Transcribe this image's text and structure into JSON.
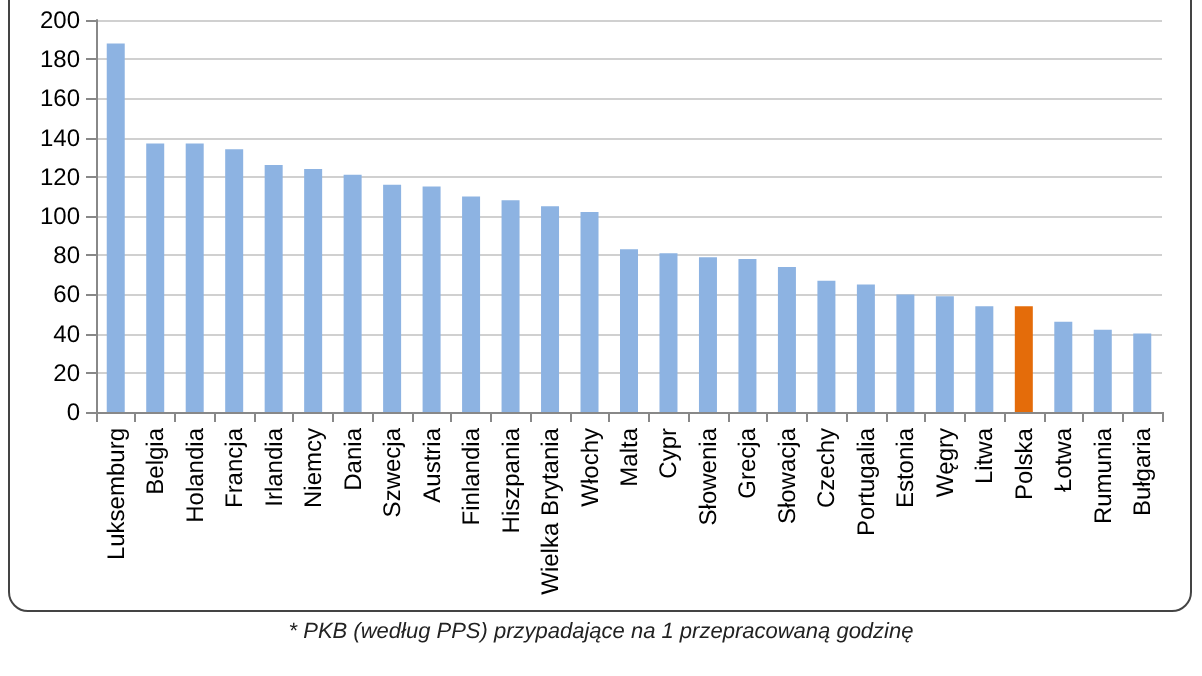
{
  "chart_data": {
    "type": "bar",
    "categories": [
      "Luksemburg",
      "Belgia",
      "Holandia",
      "Francja",
      "Irlandia",
      "Niemcy",
      "Dania",
      "Szwecja",
      "Austria",
      "Finlandia",
      "Hiszpania",
      "Wielka Brytania",
      "Włochy",
      "Malta",
      "Cypr",
      "Słowenia",
      "Grecja",
      "Słowacja",
      "Czechy",
      "Portugalia",
      "Estonia",
      "Węgry",
      "Litwa",
      "Polska",
      "Łotwa",
      "Rumunia",
      "Bułgaria"
    ],
    "values": [
      188,
      137,
      137,
      134,
      126,
      124,
      121,
      116,
      115,
      110,
      108,
      105,
      102,
      83,
      81,
      79,
      78,
      74,
      67,
      65,
      60,
      59,
      54,
      54,
      46,
      42,
      40
    ],
    "colors": [
      "#8db3e2",
      "#8db3e2",
      "#8db3e2",
      "#8db3e2",
      "#8db3e2",
      "#8db3e2",
      "#8db3e2",
      "#8db3e2",
      "#8db3e2",
      "#8db3e2",
      "#8db3e2",
      "#8db3e2",
      "#8db3e2",
      "#8db3e2",
      "#8db3e2",
      "#8db3e2",
      "#8db3e2",
      "#8db3e2",
      "#8db3e2",
      "#8db3e2",
      "#8db3e2",
      "#8db3e2",
      "#8db3e2",
      "#e46c0a",
      "#8db3e2",
      "#8db3e2",
      "#8db3e2"
    ],
    "ylim": [
      0,
      200
    ],
    "yticks": [
      0,
      20,
      40,
      60,
      80,
      100,
      120,
      140,
      160,
      180,
      200
    ],
    "grid": "y",
    "annotations": [
      "* PKB (według PPS) przypadające na 1 przepracowaną godzinę"
    ]
  }
}
